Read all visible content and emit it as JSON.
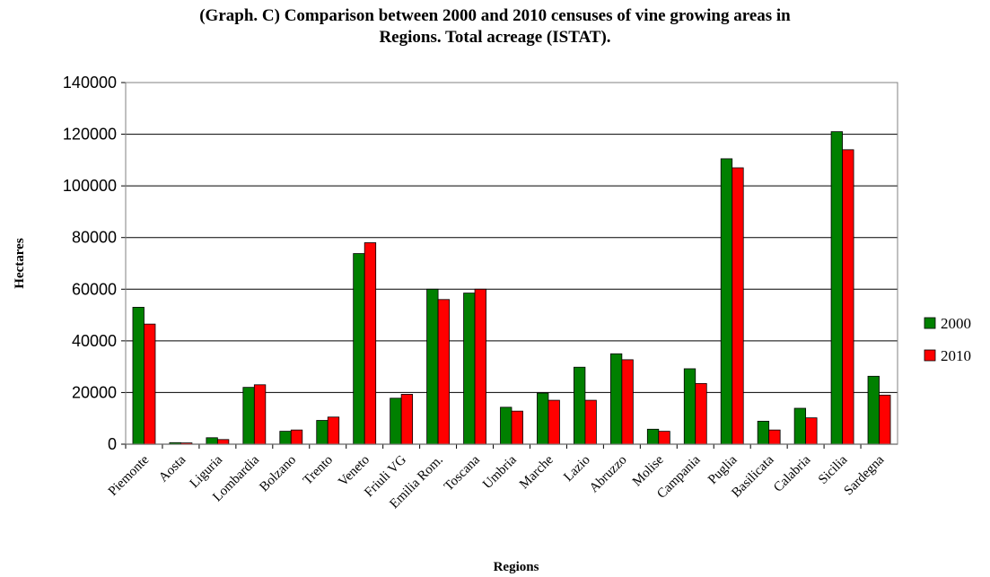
{
  "chart_data": {
    "type": "bar",
    "title_line1": "(Graph. C) Comparison between 2000 and 2010 censuses of vine growing areas in",
    "title_line2": "Regions. Total acreage (ISTAT).",
    "xlabel": "Regions",
    "ylabel": "Hectares",
    "ylim": [
      0,
      140000
    ],
    "yticks": [
      0,
      20000,
      40000,
      60000,
      80000,
      100000,
      120000,
      140000
    ],
    "grid": true,
    "legend_position": "right",
    "categories": [
      "Piemonte",
      "Aosta",
      "Liguria",
      "Lombardia",
      "Bolzano",
      "Trento",
      "Veneto",
      "Friuli VG",
      "Emilia Rom.",
      "Toscana",
      "Umbria",
      "Marche",
      "Lazio",
      "Abruzzo",
      "Molise",
      "Campania",
      "Puglia",
      "Basilicata",
      "Calabria",
      "Sicilia",
      "Sardegna"
    ],
    "series": [
      {
        "name": "2000",
        "color": "#008000",
        "values": [
          53000,
          600,
          2500,
          22000,
          5000,
          9200,
          73800,
          17800,
          60000,
          58500,
          14300,
          19800,
          29800,
          35000,
          5800,
          29200,
          110500,
          8900,
          13900,
          121000,
          26300
        ]
      },
      {
        "name": "2010",
        "color": "#ff0000",
        "values": [
          46500,
          500,
          1800,
          23000,
          5500,
          10500,
          78000,
          19300,
          56000,
          60000,
          12800,
          17000,
          17000,
          32700,
          5000,
          23500,
          107000,
          5500,
          10200,
          114000,
          19000
        ]
      }
    ]
  }
}
